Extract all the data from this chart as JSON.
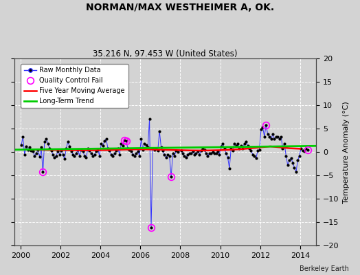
{
  "title": "NORMAN/MAX WESTHEIMER A, OK.",
  "subtitle": "35.216 N, 97.453 W (United States)",
  "ylabel": "Temperature Anomaly (°C)",
  "attribution": "Berkeley Earth",
  "ylim": [
    -20,
    20
  ],
  "xlim": [
    1999.7,
    2014.8
  ],
  "yticks": [
    -20,
    -15,
    -10,
    -5,
    0,
    5,
    10,
    15,
    20
  ],
  "xticks": [
    2000,
    2002,
    2004,
    2006,
    2008,
    2010,
    2012,
    2014
  ],
  "bg_color": "#d3d3d3",
  "plot_bg_color": "#d3d3d3",
  "grid_color": "#ffffff",
  "raw_color": "#3333ff",
  "raw_marker_color": "#000000",
  "ma_color": "#ff0000",
  "trend_color": "#00cc00",
  "qc_color": "#ff00ff",
  "raw_data": [
    [
      2000.042,
      1.5
    ],
    [
      2000.125,
      3.2
    ],
    [
      2000.208,
      -0.5
    ],
    [
      2000.292,
      1.2
    ],
    [
      2000.375,
      0.5
    ],
    [
      2000.458,
      1.0
    ],
    [
      2000.542,
      0.3
    ],
    [
      2000.625,
      0.2
    ],
    [
      2000.708,
      -0.8
    ],
    [
      2000.792,
      -0.3
    ],
    [
      2000.875,
      0.5
    ],
    [
      2000.958,
      -1.0
    ],
    [
      2001.042,
      1.0
    ],
    [
      2001.125,
      -4.3
    ],
    [
      2001.208,
      2.2
    ],
    [
      2001.292,
      2.8
    ],
    [
      2001.375,
      1.8
    ],
    [
      2001.458,
      0.8
    ],
    [
      2001.542,
      0.3
    ],
    [
      2001.625,
      -0.5
    ],
    [
      2001.708,
      -1.2
    ],
    [
      2001.792,
      -0.8
    ],
    [
      2001.875,
      0.2
    ],
    [
      2001.958,
      -0.5
    ],
    [
      2002.042,
      0.3
    ],
    [
      2002.125,
      -0.5
    ],
    [
      2002.208,
      -1.5
    ],
    [
      2002.292,
      0.8
    ],
    [
      2002.375,
      2.2
    ],
    [
      2002.458,
      1.2
    ],
    [
      2002.542,
      0.2
    ],
    [
      2002.625,
      -0.5
    ],
    [
      2002.708,
      -0.8
    ],
    [
      2002.792,
      -0.3
    ],
    [
      2002.875,
      0.5
    ],
    [
      2002.958,
      -0.8
    ],
    [
      2003.042,
      0.5
    ],
    [
      2003.125,
      0.2
    ],
    [
      2003.208,
      -0.8
    ],
    [
      2003.292,
      -1.2
    ],
    [
      2003.375,
      0.8
    ],
    [
      2003.458,
      0.3
    ],
    [
      2003.542,
      -0.3
    ],
    [
      2003.625,
      -0.8
    ],
    [
      2003.708,
      -0.5
    ],
    [
      2003.792,
      0.2
    ],
    [
      2003.875,
      0.5
    ],
    [
      2003.958,
      -0.8
    ],
    [
      2004.042,
      1.8
    ],
    [
      2004.125,
      1.3
    ],
    [
      2004.208,
      2.3
    ],
    [
      2004.292,
      2.8
    ],
    [
      2004.375,
      0.8
    ],
    [
      2004.458,
      0.3
    ],
    [
      2004.542,
      -0.5
    ],
    [
      2004.625,
      -0.8
    ],
    [
      2004.708,
      -0.3
    ],
    [
      2004.792,
      0.3
    ],
    [
      2004.875,
      0.8
    ],
    [
      2004.958,
      -0.5
    ],
    [
      2005.042,
      1.8
    ],
    [
      2005.125,
      1.3
    ],
    [
      2005.208,
      2.5
    ],
    [
      2005.292,
      2.3
    ],
    [
      2005.375,
      0.8
    ],
    [
      2005.458,
      0.5
    ],
    [
      2005.542,
      0.2
    ],
    [
      2005.625,
      -0.5
    ],
    [
      2005.708,
      -0.8
    ],
    [
      2005.792,
      -0.3
    ],
    [
      2005.875,
      0.2
    ],
    [
      2005.958,
      -0.8
    ],
    [
      2006.042,
      2.8
    ],
    [
      2006.125,
      0.5
    ],
    [
      2006.208,
      1.8
    ],
    [
      2006.292,
      1.5
    ],
    [
      2006.375,
      1.0
    ],
    [
      2006.458,
      7.0
    ],
    [
      2006.542,
      -16.2
    ],
    [
      2006.625,
      0.8
    ],
    [
      2006.708,
      0.5
    ],
    [
      2006.792,
      0.8
    ],
    [
      2006.875,
      0.3
    ],
    [
      2006.958,
      4.5
    ],
    [
      2007.042,
      1.0
    ],
    [
      2007.125,
      0.3
    ],
    [
      2007.208,
      -0.5
    ],
    [
      2007.292,
      -1.2
    ],
    [
      2007.375,
      -0.5
    ],
    [
      2007.458,
      -0.8
    ],
    [
      2007.542,
      -5.3
    ],
    [
      2007.625,
      -0.3
    ],
    [
      2007.708,
      -0.8
    ],
    [
      2007.792,
      0.3
    ],
    [
      2007.875,
      0.0
    ],
    [
      2008.042,
      0.3
    ],
    [
      2008.125,
      -0.3
    ],
    [
      2008.208,
      -0.8
    ],
    [
      2008.292,
      -1.2
    ],
    [
      2008.375,
      -0.5
    ],
    [
      2008.458,
      -0.2
    ],
    [
      2008.542,
      -0.3
    ],
    [
      2008.625,
      0.2
    ],
    [
      2008.708,
      -0.5
    ],
    [
      2008.792,
      -0.3
    ],
    [
      2008.875,
      0.2
    ],
    [
      2008.958,
      -0.5
    ],
    [
      2009.042,
      0.3
    ],
    [
      2009.125,
      0.8
    ],
    [
      2009.208,
      0.5
    ],
    [
      2009.292,
      -0.3
    ],
    [
      2009.375,
      -0.8
    ],
    [
      2009.458,
      -0.3
    ],
    [
      2009.542,
      -0.2
    ],
    [
      2009.625,
      0.0
    ],
    [
      2009.708,
      -0.2
    ],
    [
      2009.792,
      -0.3
    ],
    [
      2009.875,
      0.2
    ],
    [
      2009.958,
      -0.5
    ],
    [
      2010.042,
      1.2
    ],
    [
      2010.125,
      1.8
    ],
    [
      2010.208,
      0.8
    ],
    [
      2010.292,
      -0.3
    ],
    [
      2010.375,
      -1.2
    ],
    [
      2010.458,
      -3.5
    ],
    [
      2010.542,
      0.8
    ],
    [
      2010.625,
      0.3
    ],
    [
      2010.708,
      1.8
    ],
    [
      2010.792,
      1.3
    ],
    [
      2010.875,
      1.8
    ],
    [
      2010.958,
      0.8
    ],
    [
      2011.042,
      1.3
    ],
    [
      2011.125,
      0.8
    ],
    [
      2011.208,
      1.8
    ],
    [
      2011.292,
      2.2
    ],
    [
      2011.375,
      1.3
    ],
    [
      2011.458,
      0.8
    ],
    [
      2011.542,
      0.3
    ],
    [
      2011.625,
      -0.5
    ],
    [
      2011.708,
      -0.8
    ],
    [
      2011.792,
      -1.3
    ],
    [
      2011.875,
      0.3
    ],
    [
      2011.958,
      0.5
    ],
    [
      2012.042,
      4.8
    ],
    [
      2012.125,
      5.3
    ],
    [
      2012.208,
      3.3
    ],
    [
      2012.292,
      5.8
    ],
    [
      2012.375,
      3.8
    ],
    [
      2012.458,
      3.3
    ],
    [
      2012.542,
      2.8
    ],
    [
      2012.625,
      3.8
    ],
    [
      2012.708,
      2.8
    ],
    [
      2012.792,
      3.3
    ],
    [
      2012.875,
      3.3
    ],
    [
      2012.958,
      2.8
    ],
    [
      2013.042,
      3.3
    ],
    [
      2013.125,
      0.8
    ],
    [
      2013.208,
      1.8
    ],
    [
      2013.292,
      -0.8
    ],
    [
      2013.375,
      -2.8
    ],
    [
      2013.458,
      -1.8
    ],
    [
      2013.542,
      -1.3
    ],
    [
      2013.625,
      -2.3
    ],
    [
      2013.708,
      -3.3
    ],
    [
      2013.792,
      -4.3
    ],
    [
      2013.875,
      -1.8
    ],
    [
      2013.958,
      -0.8
    ],
    [
      2014.042,
      0.8
    ],
    [
      2014.125,
      0.3
    ],
    [
      2014.208,
      0.2
    ],
    [
      2014.292,
      0.8
    ],
    [
      2014.375,
      0.5
    ]
  ],
  "qc_fails": [
    [
      2001.125,
      -4.3
    ],
    [
      2005.208,
      2.5
    ],
    [
      2005.292,
      2.3
    ],
    [
      2006.542,
      -16.2
    ],
    [
      2007.542,
      -5.3
    ],
    [
      2012.292,
      5.8
    ],
    [
      2014.375,
      0.5
    ]
  ],
  "moving_avg": [
    [
      2000.5,
      0.5
    ],
    [
      2001.0,
      0.48
    ],
    [
      2001.5,
      0.45
    ],
    [
      2002.0,
      0.42
    ],
    [
      2002.5,
      0.4
    ],
    [
      2003.0,
      0.38
    ],
    [
      2003.5,
      0.38
    ],
    [
      2004.0,
      0.4
    ],
    [
      2004.5,
      0.42
    ],
    [
      2005.0,
      0.5
    ],
    [
      2005.5,
      0.55
    ],
    [
      2006.0,
      0.6
    ],
    [
      2006.5,
      0.55
    ],
    [
      2007.0,
      0.5
    ],
    [
      2007.5,
      0.45
    ],
    [
      2008.0,
      0.4
    ],
    [
      2008.5,
      0.35
    ],
    [
      2009.0,
      0.33
    ],
    [
      2009.5,
      0.35
    ],
    [
      2010.0,
      0.4
    ],
    [
      2010.5,
      0.5
    ],
    [
      2011.0,
      0.6
    ],
    [
      2011.5,
      0.8
    ],
    [
      2012.0,
      1.0
    ],
    [
      2012.5,
      1.2
    ],
    [
      2013.0,
      1.0
    ],
    [
      2013.5,
      0.8
    ],
    [
      2014.0,
      0.7
    ]
  ],
  "trend_x": [
    1999.7,
    2014.8
  ],
  "trend_y": [
    0.5,
    1.3
  ]
}
